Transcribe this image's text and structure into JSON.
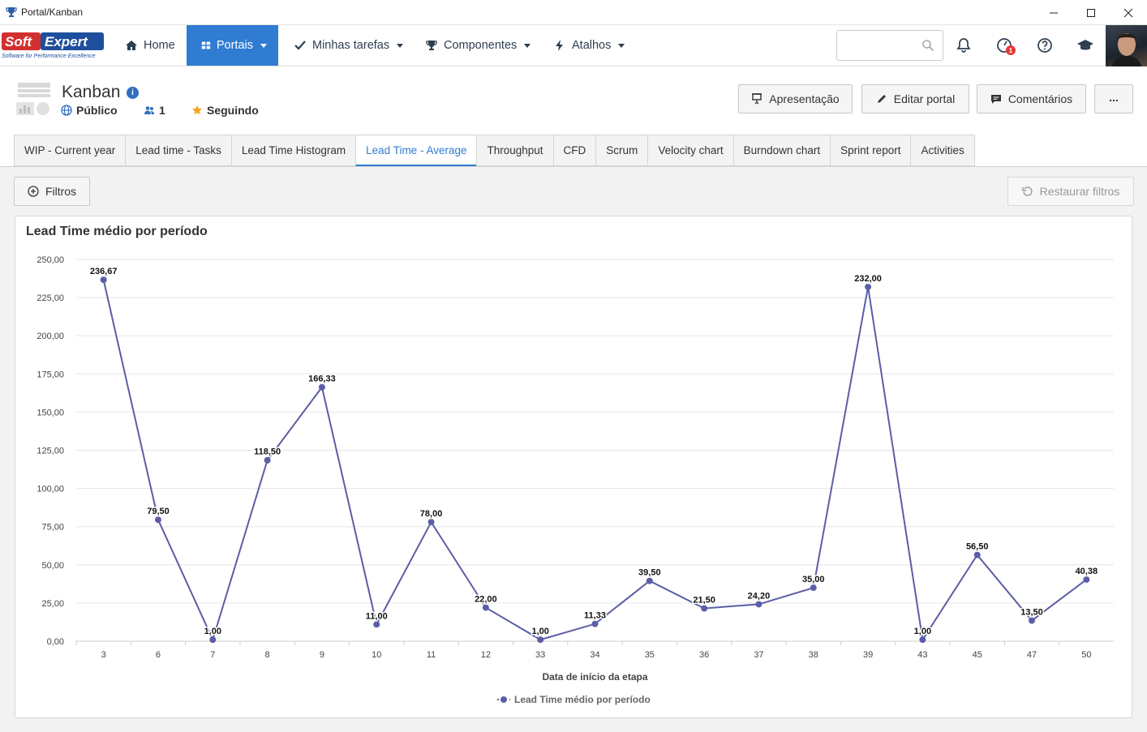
{
  "window": {
    "title": "Portal/Kanban",
    "minimize_icon": "minimize-icon",
    "maximize_icon": "maximize-icon",
    "close_icon": "close-icon"
  },
  "nav": {
    "logo_text": "SoftExpert",
    "logo_tagline": "Software for Performance Excellence",
    "items": [
      {
        "label": "Home",
        "icon": "home-icon"
      },
      {
        "label": "Portais",
        "icon": "portal-grid-icon",
        "active": true
      },
      {
        "label": "Minhas tarefas",
        "icon": "check-icon"
      },
      {
        "label": "Componentes",
        "icon": "trophy-icon"
      },
      {
        "label": "Atalhos",
        "icon": "bolt-icon"
      }
    ],
    "search": {
      "value": "",
      "placeholder": ""
    },
    "notification_badge": "1"
  },
  "portal": {
    "title": "Kanban",
    "visibility": "Público",
    "members": "1",
    "follow": "Seguindo",
    "buttons": {
      "presentation": "Apresentação",
      "edit": "Editar portal",
      "comments": "Comentários",
      "more": "..."
    }
  },
  "tabs": [
    {
      "label": "WIP - Current year"
    },
    {
      "label": "Lead time - Tasks"
    },
    {
      "label": "Lead Time Histogram"
    },
    {
      "label": "Lead Time - Average",
      "active": true
    },
    {
      "label": "Throughput"
    },
    {
      "label": "CFD"
    },
    {
      "label": "Scrum"
    },
    {
      "label": "Velocity chart"
    },
    {
      "label": "Burndown chart"
    },
    {
      "label": "Sprint report"
    },
    {
      "label": "Activities"
    }
  ],
  "toolbar": {
    "filters": "Filtros",
    "restore": "Restaurar filtros"
  },
  "colors": {
    "accent": "#2f7cd2",
    "series": "#5b5ea6"
  },
  "chart_data": {
    "type": "line",
    "title": "Lead Time médio por período",
    "xlabel": "Data de início da etapa",
    "ylabel": "",
    "ylim": [
      0,
      250
    ],
    "yticks": [
      "0,00",
      "25,00",
      "50,00",
      "75,00",
      "100,00",
      "125,00",
      "150,00",
      "175,00",
      "200,00",
      "225,00",
      "250,00"
    ],
    "categories": [
      "3",
      "6",
      "7",
      "8",
      "9",
      "10",
      "11",
      "12",
      "33",
      "34",
      "35",
      "36",
      "37",
      "38",
      "39",
      "43",
      "45",
      "47",
      "50"
    ],
    "series": [
      {
        "name": "Lead Time médio por período",
        "values": [
          236.67,
          79.5,
          1.0,
          118.5,
          166.33,
          11.0,
          78.0,
          22.0,
          1.0,
          11.33,
          39.5,
          21.5,
          24.2,
          35.0,
          232.0,
          1.0,
          56.5,
          13.5,
          40.38
        ],
        "labels": [
          "236,67",
          "79,50",
          "1,00",
          "118,50",
          "166,33",
          "11,00",
          "78,00",
          "22,00",
          "1,00",
          "11,33",
          "39,50",
          "21,50",
          "24,20",
          "35,00",
          "232,00",
          "1,00",
          "56,50",
          "13,50",
          "40,38"
        ]
      }
    ],
    "grid": true,
    "legend": "bottom-center"
  }
}
